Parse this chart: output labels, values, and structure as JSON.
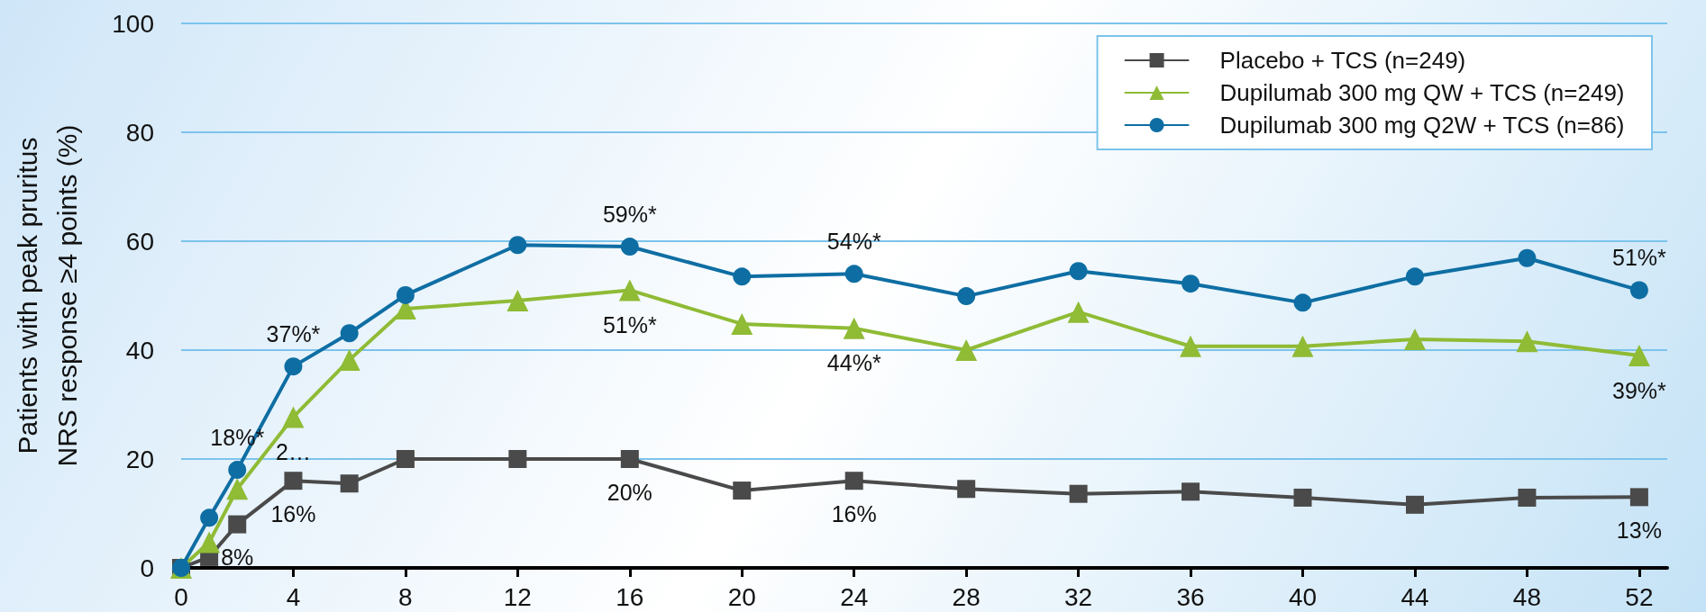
{
  "chart_data": {
    "type": "line",
    "ylabel": "Patients with peak pruritus NRS response ≥4 points (%)",
    "x": [
      0,
      1,
      2,
      4,
      6,
      8,
      12,
      16,
      20,
      24,
      28,
      32,
      36,
      40,
      44,
      48,
      52
    ],
    "series": [
      {
        "name": "Placebo + TCS (n=249)",
        "color": "#4a4a4a",
        "marker": "square",
        "values": [
          0,
          2,
          8,
          16,
          15.5,
          20,
          20,
          20,
          14.2,
          16,
          14.5,
          13.6,
          14,
          12.9,
          11.6,
          12.9,
          13
        ],
        "value_labels": [
          null,
          null,
          "8%",
          "16%",
          null,
          null,
          null,
          "20%",
          null,
          "16%",
          null,
          null,
          null,
          null,
          null,
          null,
          "13%"
        ]
      },
      {
        "name": "Dupilumab 300 mg QW + TCS (n=249)",
        "color": "#8fbb35",
        "marker": "triangle",
        "values": [
          0,
          4.7,
          14.5,
          27.7,
          38.2,
          47.6,
          49.1,
          51,
          44.8,
          44,
          40,
          47,
          40.7,
          40.7,
          42,
          41.6,
          39
        ],
        "value_labels": [
          null,
          null,
          null,
          "2…",
          null,
          null,
          null,
          "51%*",
          null,
          "44%*",
          null,
          null,
          null,
          null,
          null,
          null,
          "39%*"
        ]
      },
      {
        "name": "Dupilumab 300 mg Q2W + TCS (n=86)",
        "color": "#0e6ea3",
        "marker": "circle",
        "values": [
          0,
          9.2,
          18,
          37,
          43.1,
          50.1,
          59.3,
          59,
          53.5,
          54,
          49.9,
          54.5,
          52.2,
          48.7,
          53.5,
          56.9,
          51
        ],
        "value_labels": [
          null,
          null,
          "18%*",
          "37%*",
          null,
          null,
          null,
          "59%*",
          null,
          "54%*",
          null,
          null,
          null,
          null,
          null,
          null,
          "51%*"
        ]
      }
    ],
    "xlim": [
      0,
      53
    ],
    "xticks": [
      0,
      4,
      8,
      12,
      16,
      20,
      24,
      28,
      32,
      36,
      40,
      44,
      48,
      52
    ],
    "ylim": [
      0,
      100
    ],
    "yticks": [
      0,
      20,
      40,
      60,
      80,
      100
    ],
    "grid": "y",
    "legend": "top right",
    "line_style": "solid"
  }
}
